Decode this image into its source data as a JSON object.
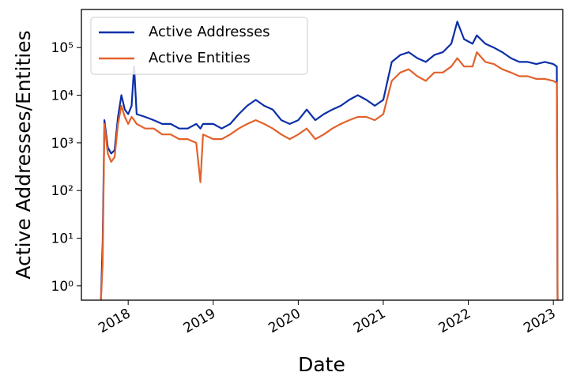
{
  "chart_data": {
    "type": "line",
    "xlabel": "Date",
    "ylabel": "Active Addresses/Entities",
    "x": [
      2017.68,
      2017.7,
      2017.72,
      2017.76,
      2017.8,
      2017.84,
      2017.88,
      2017.92,
      2017.96,
      2018.0,
      2018.04,
      2018.07,
      2018.1,
      2018.2,
      2018.3,
      2018.4,
      2018.5,
      2018.6,
      2018.7,
      2018.8,
      2018.85,
      2018.88,
      2019.0,
      2019.1,
      2019.2,
      2019.3,
      2019.4,
      2019.5,
      2019.6,
      2019.7,
      2019.8,
      2019.9,
      2020.0,
      2020.1,
      2020.2,
      2020.3,
      2020.4,
      2020.5,
      2020.6,
      2020.7,
      2020.8,
      2020.9,
      2021.0,
      2021.05,
      2021.1,
      2021.2,
      2021.3,
      2021.4,
      2021.5,
      2021.6,
      2021.7,
      2021.8,
      2021.87,
      2021.95,
      2022.05,
      2022.1,
      2022.2,
      2022.3,
      2022.4,
      2022.5,
      2022.6,
      2022.7,
      2022.8,
      2022.9,
      2023.0,
      2023.04,
      2023.05
    ],
    "series": [
      {
        "name": "Active Addresses",
        "color": "#0b2ea8",
        "values": [
          0.5,
          8,
          3000,
          800,
          600,
          700,
          3500,
          10000,
          5000,
          4000,
          6000,
          40000,
          4000,
          3500,
          3000,
          2500,
          2500,
          2000,
          2000,
          2500,
          2000,
          2500,
          2500,
          2000,
          2500,
          4000,
          6000,
          8000,
          6000,
          5000,
          3000,
          2500,
          3000,
          5000,
          3000,
          4000,
          5000,
          6000,
          8000,
          10000,
          8000,
          6000,
          8000,
          20000,
          50000,
          70000,
          80000,
          60000,
          50000,
          70000,
          80000,
          120000,
          350000,
          150000,
          120000,
          180000,
          120000,
          100000,
          80000,
          60000,
          50000,
          50000,
          45000,
          50000,
          45000,
          40000,
          0.5
        ]
      },
      {
        "name": "Active Entities",
        "color": "#e2622a",
        "values": [
          0.5,
          3,
          2500,
          600,
          400,
          500,
          2500,
          6000,
          3500,
          2500,
          3500,
          3000,
          2500,
          2000,
          2000,
          1500,
          1500,
          1200,
          1200,
          1000,
          150,
          1500,
          1200,
          1200,
          1500,
          2000,
          2500,
          3000,
          2500,
          2000,
          1500,
          1200,
          1500,
          2000,
          1200,
          1500,
          2000,
          2500,
          3000,
          3500,
          3500,
          3000,
          4000,
          9000,
          20000,
          30000,
          35000,
          25000,
          20000,
          30000,
          30000,
          40000,
          60000,
          40000,
          40000,
          80000,
          50000,
          45000,
          35000,
          30000,
          25000,
          25000,
          22000,
          22000,
          20000,
          18000,
          0.5
        ]
      }
    ],
    "xlim": [
      2017.45,
      2023.11
    ],
    "xticks": [
      2018,
      2019,
      2020,
      2021,
      2022,
      2023
    ],
    "ylim": [
      0.5,
      630000
    ],
    "yticks": [
      {
        "value": 1,
        "label": "10⁰"
      },
      {
        "value": 10,
        "label": "10¹"
      },
      {
        "value": 100,
        "label": "10²"
      },
      {
        "value": 1000,
        "label": "10³"
      },
      {
        "value": 10000,
        "label": "10⁴"
      },
      {
        "value": 100000,
        "label": "10⁵"
      }
    ],
    "log_y": true,
    "legend": "upper left"
  }
}
